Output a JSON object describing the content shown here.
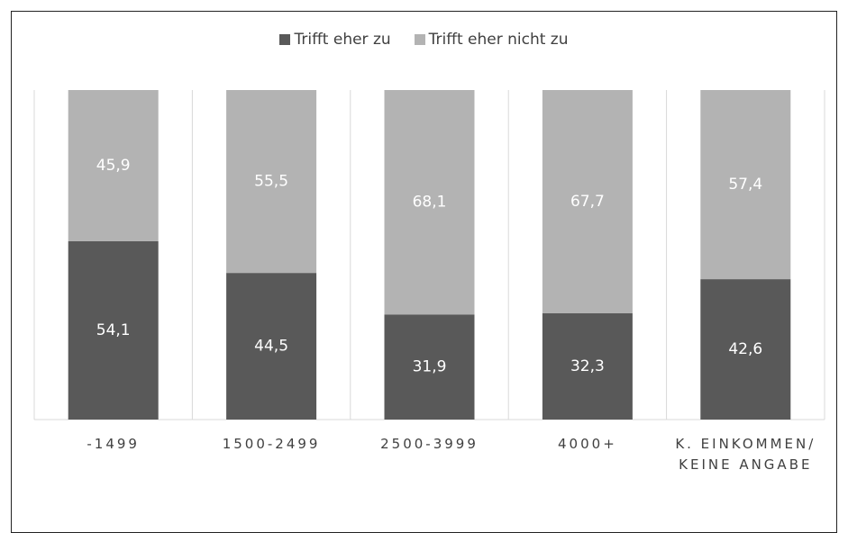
{
  "chart_data": {
    "type": "stacked_bar",
    "categories": [
      "-1499",
      "1500-2499",
      "2500-3999",
      "4000+",
      "K. EINKOMMEN/ KEINE ANGABE"
    ],
    "series": [
      {
        "name": "Trifft eher zu",
        "color": "#595959",
        "values": [
          54.1,
          44.5,
          31.9,
          32.3,
          42.6
        ],
        "value_labels": [
          "54,1",
          "44,5",
          "31,9",
          "32,3",
          "42,6"
        ]
      },
      {
        "name": "Trifft eher nicht zu",
        "color": "#b3b3b3",
        "values": [
          45.9,
          55.5,
          68.1,
          67.7,
          57.4
        ],
        "value_labels": [
          "45,9",
          "55,5",
          "68,1",
          "67,7",
          "57,4"
        ]
      }
    ],
    "legend": "top"
  }
}
